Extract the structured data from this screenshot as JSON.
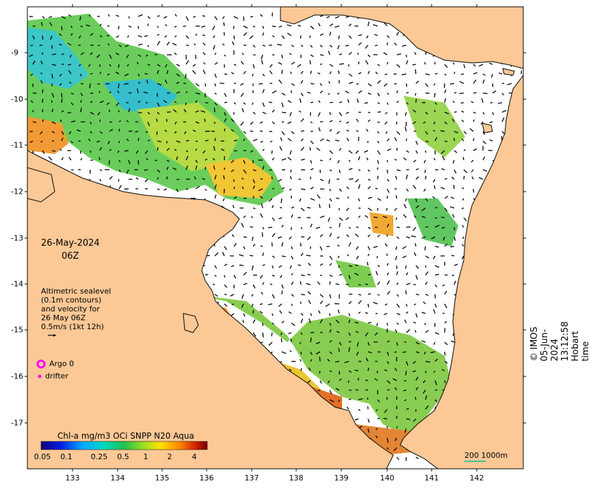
{
  "map": {
    "date": "26-May-2024",
    "hour": "06Z",
    "legend_lines": [
      "Altimetric sealevel",
      "(0.1m contours)",
      "and velocity for",
      "26 May 06Z",
      "0.5m/s (1kt 12h)"
    ],
    "argo_label": "Argo 0",
    "drifter_label": "drifter",
    "longitudes": [
      "133",
      "134",
      "135",
      "136",
      "137",
      "138",
      "139",
      "140",
      "141",
      "142"
    ],
    "latitudes": [
      "-9",
      "-10",
      "-11",
      "-12",
      "-13",
      "-14",
      "-15",
      "-16",
      "-17"
    ],
    "colorbar": {
      "title": "Chl-a mg/m3 OCi SNPP N20 Aqua",
      "ticks": [
        "0.05",
        "0.1",
        "0.25",
        "0.5",
        "1",
        "2",
        "4"
      ]
    },
    "scale_bar": "200  1000m",
    "copyright": "© IMOS 05-Jun-2024 13:12:58 Hobart time",
    "colors": {
      "land": "#fbc896",
      "ocean": "#ffffff",
      "argo": "#ff00ff",
      "drifter": "#ff00ff",
      "scale_bar": "#40c0a0"
    }
  }
}
